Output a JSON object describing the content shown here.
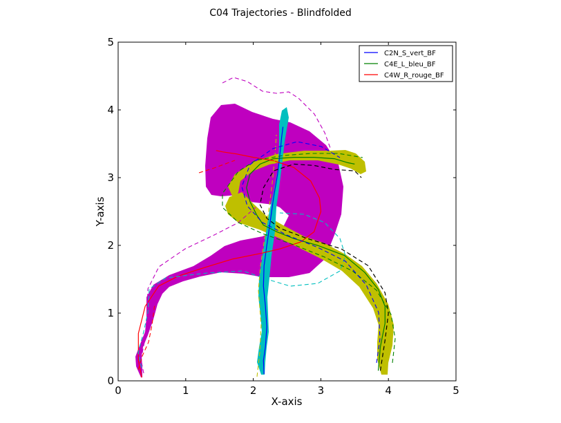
{
  "chart_data": {
    "type": "line",
    "title": "C04 Trajectories - Blindfolded",
    "xlabel": "X-axis",
    "ylabel": "Y-axis",
    "xlim": [
      0,
      5
    ],
    "ylim": [
      0,
      5
    ],
    "xticks": [
      "0",
      "1",
      "2",
      "3",
      "4",
      "5"
    ],
    "yticks": [
      "0",
      "1",
      "2",
      "3",
      "4",
      "5"
    ],
    "grid": false,
    "legend_position": "top-right",
    "series": [
      {
        "name": "C2N_S_vert_BF",
        "color": "#0000ff",
        "x": [
          2.16,
          2.15,
          2.18,
          2.2,
          2.18,
          2.15,
          2.16,
          2.2,
          2.25,
          2.3,
          2.36,
          2.4,
          2.42,
          2.44
        ],
        "y": [
          0.1,
          0.3,
          0.5,
          0.8,
          1.1,
          1.4,
          1.7,
          2.0,
          2.35,
          2.7,
          3.05,
          3.4,
          3.6,
          3.75
        ]
      },
      {
        "name": "C4E_L_bleu_BF",
        "color": "#008000",
        "x": [
          3.85,
          3.88,
          3.95,
          3.95,
          3.85,
          3.65,
          3.35,
          2.95,
          2.6,
          2.35,
          2.15,
          2.05,
          1.95,
          1.9,
          1.95,
          2.1,
          2.3,
          2.6,
          2.9,
          3.2,
          3.4,
          3.5
        ],
        "y": [
          0.15,
          0.5,
          0.85,
          1.1,
          1.35,
          1.6,
          1.85,
          2.0,
          2.1,
          2.2,
          2.3,
          2.45,
          2.65,
          2.85,
          3.05,
          3.2,
          3.28,
          3.3,
          3.3,
          3.28,
          3.22,
          3.2
        ]
      },
      {
        "name": "C4W_R_rouge_BF",
        "color": "#ff0000",
        "x": [
          0.35,
          0.3,
          0.3,
          0.4,
          0.6,
          0.9,
          1.3,
          1.7,
          2.1,
          2.4,
          2.7,
          2.9,
          3.0,
          2.98,
          2.85,
          2.6,
          2.3,
          2.0,
          1.75,
          1.55,
          1.45
        ],
        "y": [
          0.05,
          0.3,
          0.7,
          1.1,
          1.4,
          1.55,
          1.68,
          1.8,
          1.88,
          1.95,
          2.05,
          2.2,
          2.5,
          2.7,
          2.95,
          3.15,
          3.25,
          3.3,
          3.35,
          3.38,
          3.4
        ]
      },
      {
        "color": "#000000",
        "x": [
          3.88,
          3.95,
          4.0,
          3.95,
          3.7,
          3.3,
          2.8,
          2.4,
          2.2,
          2.1,
          2.15,
          2.3,
          2.6,
          2.9,
          3.2,
          3.5,
          3.6
        ],
        "y": [
          0.15,
          0.6,
          1.0,
          1.3,
          1.7,
          1.95,
          2.1,
          2.25,
          2.4,
          2.6,
          2.85,
          3.1,
          3.2,
          3.18,
          3.12,
          3.1,
          3.0
        ]
      }
    ]
  }
}
